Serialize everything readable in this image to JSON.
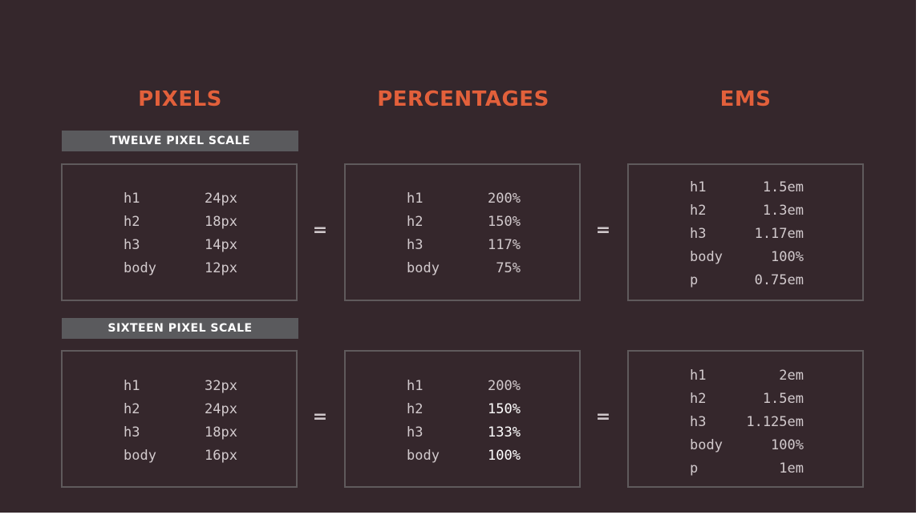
{
  "headings": {
    "pixels": "PIXELS",
    "percentages": "PERCENTAGES",
    "ems": "EMS"
  },
  "scales": {
    "twelve": {
      "label": "TWELVE PIXEL SCALE",
      "pixels": [
        {
          "key": "h1",
          "value": "24px"
        },
        {
          "key": "h2",
          "value": "18px"
        },
        {
          "key": "h3",
          "value": "14px"
        },
        {
          "key": "body",
          "value": "12px"
        }
      ],
      "percentages": [
        {
          "key": "h1",
          "value": "200%"
        },
        {
          "key": "h2",
          "value": "150%"
        },
        {
          "key": "h3",
          "value": "117%"
        },
        {
          "key": "body",
          "value": "75%"
        }
      ],
      "ems": [
        {
          "key": "h1",
          "value": "1.5em"
        },
        {
          "key": "h2",
          "value": "1.3em"
        },
        {
          "key": "h3",
          "value": "1.17em"
        },
        {
          "key": "body",
          "value": "100%"
        },
        {
          "key": "p",
          "value": "0.75em"
        }
      ]
    },
    "sixteen": {
      "label": "SIXTEEN PIXEL SCALE",
      "pixels": [
        {
          "key": "h1",
          "value": "32px"
        },
        {
          "key": "h2",
          "value": "24px"
        },
        {
          "key": "h3",
          "value": "18px"
        },
        {
          "key": "body",
          "value": "16px"
        }
      ],
      "percentages": [
        {
          "key": "h1",
          "value": "200%"
        },
        {
          "key": "h2",
          "value": "150%"
        },
        {
          "key": "h3",
          "value": "133%"
        },
        {
          "key": "body",
          "value": "100%"
        }
      ],
      "ems": [
        {
          "key": "h1",
          "value": "2em"
        },
        {
          "key": "h2",
          "value": "1.5em"
        },
        {
          "key": "h3",
          "value": "1.125em"
        },
        {
          "key": "body",
          "value": "100%"
        },
        {
          "key": "p",
          "value": "1em"
        }
      ]
    }
  },
  "equals_sign": "=",
  "colors": {
    "background": "#35272c",
    "heading_accent": "#e2603b",
    "label_bar": "#5a5a5d",
    "box_border": "#5f5a5c",
    "text": "#d2cacd"
  }
}
